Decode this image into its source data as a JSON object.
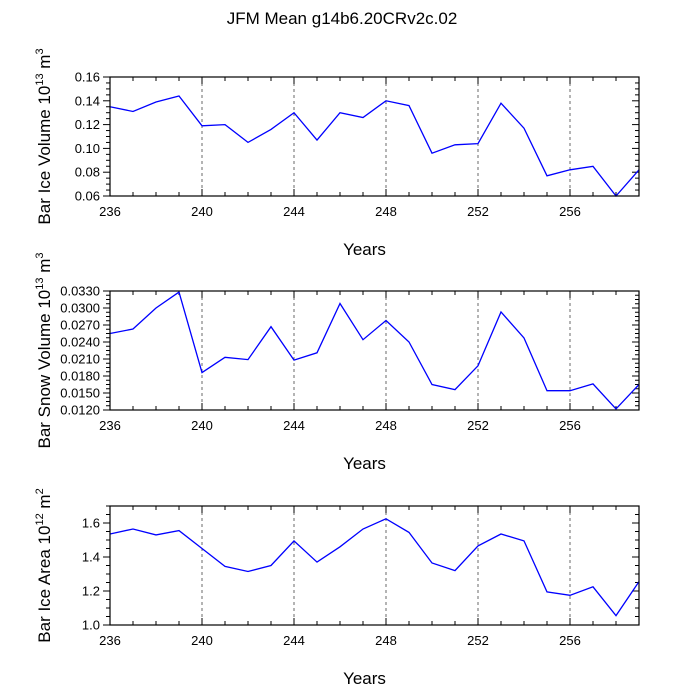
{
  "title": "JFM Mean g14b6.20CRv2c.02",
  "chart_data": [
    {
      "type": "line",
      "title": "JFM Mean g14b6.20CRv2c.02",
      "xlabel": "Years",
      "ylabel": {
        "base": "Bar Ice Volume 10",
        "exp": "13",
        "unit": " m",
        "unit_exp": "3"
      },
      "x": [
        236,
        237,
        238,
        239,
        240,
        241,
        242,
        243,
        244,
        245,
        246,
        247,
        248,
        249,
        250,
        251,
        252,
        253,
        254,
        255,
        256,
        257,
        258,
        259
      ],
      "xlim": [
        236,
        259
      ],
      "xticks": [
        "236",
        "240",
        "244",
        "248",
        "252",
        "256"
      ],
      "ylim": [
        0.06,
        0.16
      ],
      "yticks": [
        "0.06",
        "0.08",
        "0.10",
        "0.12",
        "0.14",
        "0.16"
      ],
      "series": [
        {
          "name": "Bar Ice Volume",
          "color": "#0000ff",
          "values": [
            0.135,
            0.131,
            0.139,
            0.144,
            0.119,
            0.12,
            0.105,
            0.116,
            0.13,
            0.107,
            0.13,
            0.126,
            0.14,
            0.136,
            0.096,
            0.103,
            0.104,
            0.138,
            0.117,
            0.077,
            0.082,
            0.085,
            0.06,
            0.082
          ]
        }
      ],
      "vlines": [
        240,
        244,
        248,
        252,
        256
      ]
    },
    {
      "type": "line",
      "xlabel": "Years",
      "ylabel": {
        "base": "Bar Snow Volume 10",
        "exp": "13",
        "unit": " m",
        "unit_exp": "3"
      },
      "x": [
        236,
        237,
        238,
        239,
        240,
        241,
        242,
        243,
        244,
        245,
        246,
        247,
        248,
        249,
        250,
        251,
        252,
        253,
        254,
        255,
        256,
        257,
        258,
        259
      ],
      "xlim": [
        236,
        259
      ],
      "xticks": [
        "236",
        "240",
        "244",
        "248",
        "252",
        "256"
      ],
      "ylim": [
        0.012,
        0.033
      ],
      "yticks": [
        "0.0120",
        "0.0150",
        "0.0180",
        "0.0210",
        "0.0240",
        "0.0270",
        "0.0300",
        "0.0330"
      ],
      "series": [
        {
          "name": "Bar Snow Volume",
          "color": "#0000ff",
          "values": [
            0.0255,
            0.0263,
            0.03,
            0.0328,
            0.0186,
            0.0213,
            0.0209,
            0.0267,
            0.0208,
            0.0221,
            0.0308,
            0.0244,
            0.0278,
            0.024,
            0.0165,
            0.0156,
            0.0198,
            0.0293,
            0.0247,
            0.0154,
            0.0154,
            0.0166,
            0.0122,
            0.0165
          ]
        }
      ],
      "vlines": [
        240,
        244,
        248,
        252,
        256
      ]
    },
    {
      "type": "line",
      "xlabel": "Years",
      "ylabel": {
        "base": "Bar Ice Area 10",
        "exp": "12",
        "unit": " m",
        "unit_exp": "2"
      },
      "x": [
        236,
        237,
        238,
        239,
        240,
        241,
        242,
        243,
        244,
        245,
        246,
        247,
        248,
        249,
        250,
        251,
        252,
        253,
        254,
        255,
        256,
        257,
        258,
        259
      ],
      "xlim": [
        236,
        259
      ],
      "xticks": [
        "236",
        "240",
        "244",
        "248",
        "252",
        "256"
      ],
      "ylim": [
        1.0,
        1.7
      ],
      "yticks": [
        "1.0",
        "1.2",
        "1.4",
        "1.6"
      ],
      "series": [
        {
          "name": "Bar Ice Area",
          "color": "#0000ff",
          "values": [
            1.535,
            1.565,
            1.53,
            1.555,
            1.45,
            1.345,
            1.315,
            1.35,
            1.495,
            1.37,
            1.46,
            1.565,
            1.625,
            1.545,
            1.365,
            1.32,
            1.465,
            1.535,
            1.495,
            1.195,
            1.175,
            1.225,
            1.055,
            1.255
          ]
        }
      ],
      "vlines": [
        240,
        244,
        248,
        252,
        256
      ]
    }
  ]
}
